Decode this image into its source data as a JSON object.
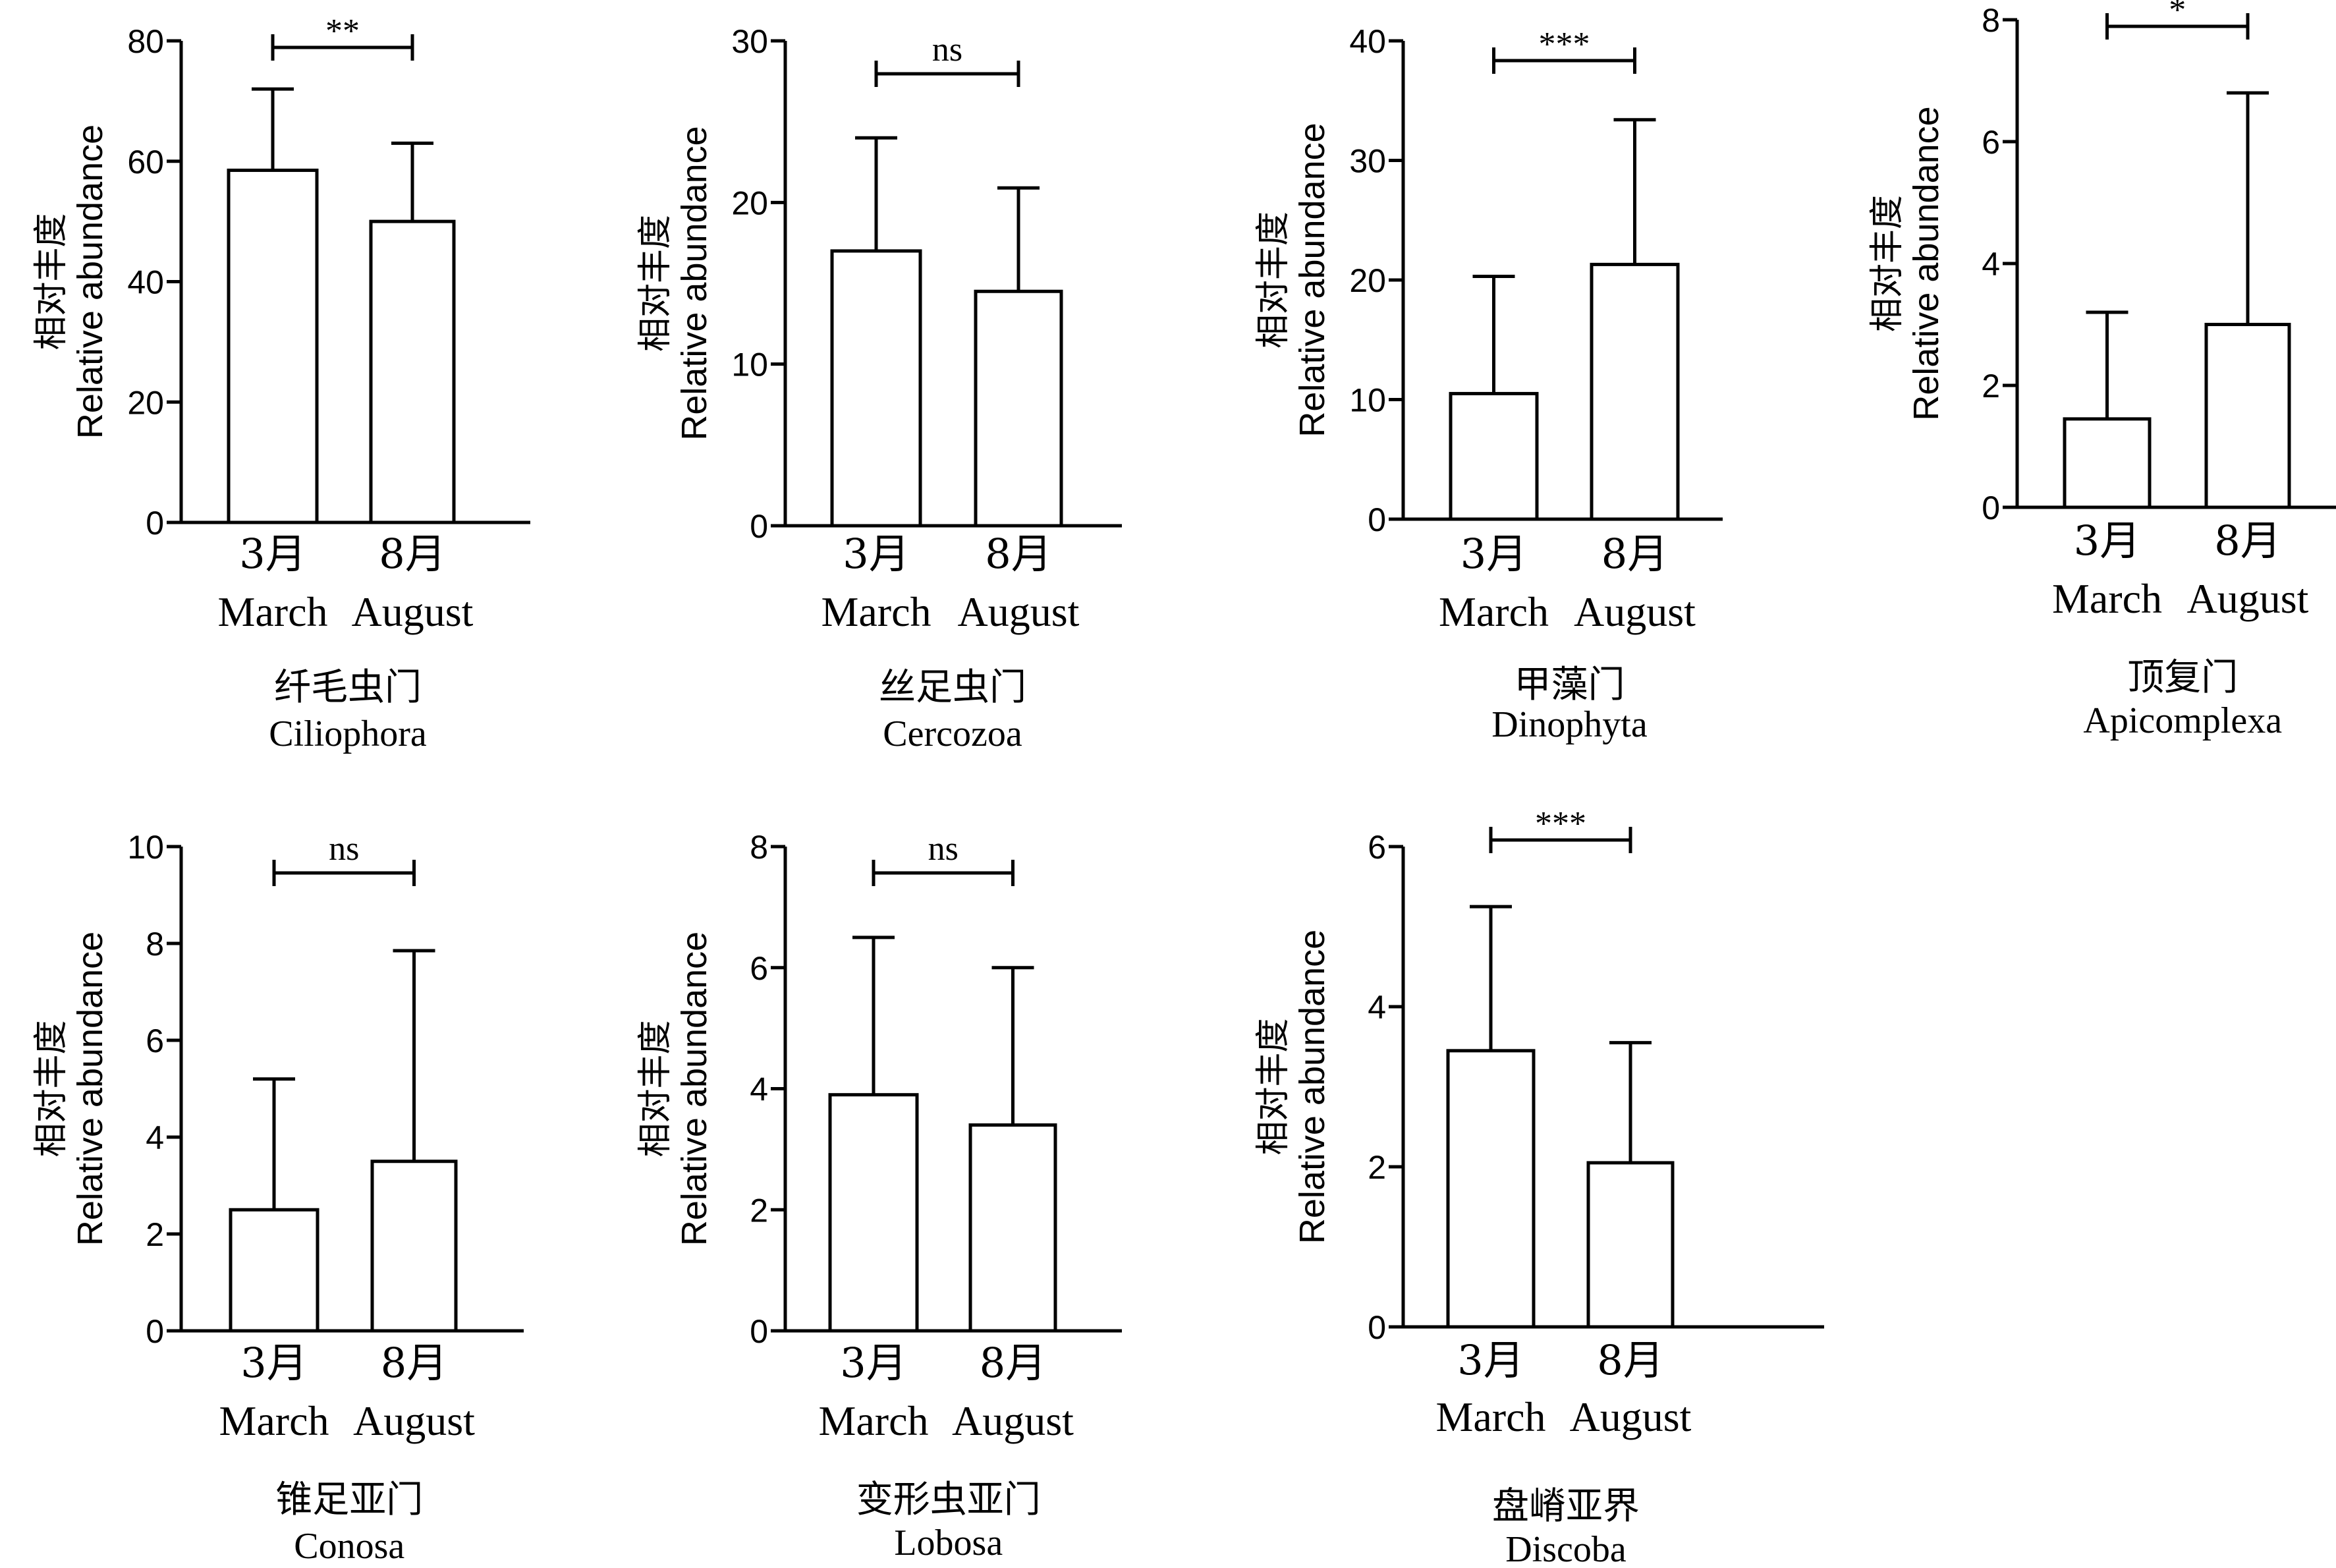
{
  "chart_data": [
    {
      "type": "bar",
      "title_zh": "纤毛虫门",
      "title_en": "Ciliophora",
      "ylabel_zh": "相对丰度",
      "ylabel_en": "Relative abundance",
      "categories_zh": [
        "3月",
        "8月"
      ],
      "categories_en": [
        "March",
        "August"
      ],
      "values": [
        58.5,
        50
      ],
      "errors": [
        13.5,
        13
      ],
      "ylim": [
        0,
        80
      ],
      "yticks": [
        0,
        20,
        40,
        60,
        80
      ],
      "significance": "**"
    },
    {
      "type": "bar",
      "title_zh": "丝足虫门",
      "title_en": "Cercozoa",
      "ylabel_zh": "相对丰度",
      "ylabel_en": "Relative abundance",
      "categories_zh": [
        "3月",
        "8月"
      ],
      "categories_en": [
        "March",
        "August"
      ],
      "values": [
        17,
        14.5
      ],
      "errors": [
        7,
        6.4
      ],
      "ylim": [
        0,
        30
      ],
      "yticks": [
        0,
        10,
        20,
        30
      ],
      "significance": "ns"
    },
    {
      "type": "bar",
      "title_zh": "甲藻门",
      "title_en": "Dinophyta",
      "ylabel_zh": "相对丰度",
      "ylabel_en": "Relative abundance",
      "categories_zh": [
        "3月",
        "8月"
      ],
      "categories_en": [
        "March",
        "August"
      ],
      "values": [
        10.5,
        21.3
      ],
      "errors": [
        9.8,
        12.1
      ],
      "ylim": [
        0,
        40
      ],
      "yticks": [
        0,
        10,
        20,
        30,
        40
      ],
      "significance": "***"
    },
    {
      "type": "bar",
      "title_zh": "顶复门",
      "title_en": "Apicomplexa",
      "ylabel_zh": "相对丰度",
      "ylabel_en": "Relative abundance",
      "categories_zh": [
        "3月",
        "8月"
      ],
      "categories_en": [
        "March",
        "August"
      ],
      "values": [
        1.45,
        3
      ],
      "errors": [
        1.75,
        3.8
      ],
      "ylim": [
        0,
        8
      ],
      "yticks": [
        0,
        2,
        4,
        6,
        8
      ],
      "significance": "*"
    },
    {
      "type": "bar",
      "title_zh": "锥足亚门",
      "title_en": "Conosa",
      "ylabel_zh": "相对丰度",
      "ylabel_en": "Relative abundance",
      "categories_zh": [
        "3月",
        "8月"
      ],
      "categories_en": [
        "March",
        "August"
      ],
      "values": [
        2.5,
        3.5
      ],
      "errors": [
        2.7,
        4.35
      ],
      "ylim": [
        0,
        10
      ],
      "yticks": [
        0,
        2,
        4,
        6,
        8,
        10
      ],
      "significance": "ns"
    },
    {
      "type": "bar",
      "title_zh": "变形虫亚门",
      "title_en": "Lobosa",
      "ylabel_zh": "相对丰度",
      "ylabel_en": "Relative abundance",
      "categories_zh": [
        "3月",
        "8月"
      ],
      "categories_en": [
        "March",
        "August"
      ],
      "values": [
        3.9,
        3.4
      ],
      "errors": [
        2.6,
        2.6
      ],
      "ylim": [
        0,
        8
      ],
      "yticks": [
        0,
        2,
        4,
        6,
        8
      ],
      "significance": "ns"
    },
    {
      "type": "bar",
      "title_zh": "盘嵴亚界",
      "title_en": "Discoba",
      "ylabel_zh": "相对丰度",
      "ylabel_en": "Relative abundance",
      "categories_zh": [
        "3月",
        "8月"
      ],
      "categories_en": [
        "March",
        "August"
      ],
      "values": [
        3.45,
        2.05
      ],
      "errors": [
        1.8,
        1.5
      ],
      "ylim": [
        0,
        6
      ],
      "yticks": [
        0,
        2,
        4,
        6
      ],
      "significance": "***"
    }
  ]
}
